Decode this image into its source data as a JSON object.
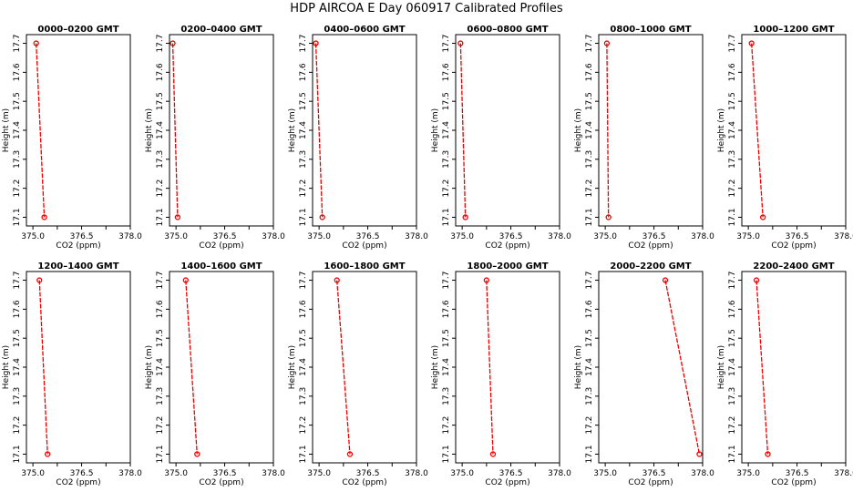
{
  "title": "HDP  AIRCOA E  Day 060917  Calibrated Profiles",
  "colors": {
    "series": "#ee0000",
    "axis": "#000000",
    "background": "#ffffff"
  },
  "chart_data": [
    {
      "type": "line",
      "title": "0000–0200 GMT",
      "xlabel": "CO2 (ppm)",
      "ylabel": "Height (m)",
      "xlim": [
        374.8,
        378.0
      ],
      "ylim": [
        17.07,
        17.73
      ],
      "xticks": [
        "375.0",
        "376.5",
        "378.0"
      ],
      "yticks": [
        "17.1",
        "17.2",
        "17.3",
        "17.4",
        "17.5",
        "17.6",
        "17.7"
      ],
      "points": [
        {
          "x": 375.1,
          "y": 17.7
        },
        {
          "x": 375.35,
          "y": 17.1
        }
      ]
    },
    {
      "type": "line",
      "title": "0200–0400 GMT",
      "xlabel": "CO2 (ppm)",
      "ylabel": "Height (m)",
      "xlim": [
        374.8,
        378.0
      ],
      "ylim": [
        17.07,
        17.73
      ],
      "xticks": [
        "375.0",
        "376.5",
        "378.0"
      ],
      "yticks": [
        "17.1",
        "17.2",
        "17.3",
        "17.4",
        "17.5",
        "17.6",
        "17.7"
      ],
      "points": [
        {
          "x": 374.9,
          "y": 17.7
        },
        {
          "x": 375.05,
          "y": 17.1
        }
      ]
    },
    {
      "type": "line",
      "title": "0400–0600 GMT",
      "xlabel": "CO2 (ppm)",
      "ylabel": "Height (m)",
      "xlim": [
        374.8,
        378.0
      ],
      "ylim": [
        17.07,
        17.73
      ],
      "xticks": [
        "375.0",
        "376.5",
        "378.0"
      ],
      "yticks": [
        "17.1",
        "17.2",
        "17.3",
        "17.4",
        "17.5",
        "17.6",
        "17.7"
      ],
      "points": [
        {
          "x": 374.9,
          "y": 17.7
        },
        {
          "x": 375.1,
          "y": 17.1
        }
      ]
    },
    {
      "type": "line",
      "title": "0600–0800 GMT",
      "xlabel": "CO2 (ppm)",
      "ylabel": "Height (m)",
      "xlim": [
        374.8,
        378.0
      ],
      "ylim": [
        17.07,
        17.73
      ],
      "xticks": [
        "375.0",
        "376.5",
        "378.0"
      ],
      "yticks": [
        "17.1",
        "17.2",
        "17.3",
        "17.4",
        "17.5",
        "17.6",
        "17.7"
      ],
      "points": [
        {
          "x": 374.95,
          "y": 17.7
        },
        {
          "x": 375.1,
          "y": 17.1
        }
      ]
    },
    {
      "type": "line",
      "title": "0800–1000 GMT",
      "xlabel": "CO2 (ppm)",
      "ylabel": "Height (m)",
      "xlim": [
        374.8,
        378.0
      ],
      "ylim": [
        17.07,
        17.73
      ],
      "xticks": [
        "375.0",
        "376.5",
        "378.0"
      ],
      "yticks": [
        "17.1",
        "17.2",
        "17.3",
        "17.4",
        "17.5",
        "17.6",
        "17.7"
      ],
      "points": [
        {
          "x": 375.05,
          "y": 17.7
        },
        {
          "x": 375.1,
          "y": 17.1
        }
      ]
    },
    {
      "type": "line",
      "title": "1000–1200 GMT",
      "xlabel": "CO2 (ppm)",
      "ylabel": "Height (m)",
      "xlim": [
        374.8,
        378.0
      ],
      "ylim": [
        17.07,
        17.73
      ],
      "xticks": [
        "375.0",
        "376.5",
        "378.0"
      ],
      "yticks": [
        "17.1",
        "17.2",
        "17.3",
        "17.4",
        "17.5",
        "17.6",
        "17.7"
      ],
      "points": [
        {
          "x": 375.1,
          "y": 17.7
        },
        {
          "x": 375.45,
          "y": 17.1
        }
      ]
    },
    {
      "type": "line",
      "title": "1200–1400 GMT",
      "xlabel": "CO2 (ppm)",
      "ylabel": "Height (m)",
      "xlim": [
        374.8,
        378.0
      ],
      "ylim": [
        17.07,
        17.73
      ],
      "xticks": [
        "375.0",
        "376.5",
        "378.0"
      ],
      "yticks": [
        "17.1",
        "17.2",
        "17.3",
        "17.4",
        "17.5",
        "17.6",
        "17.7"
      ],
      "points": [
        {
          "x": 375.2,
          "y": 17.7
        },
        {
          "x": 375.45,
          "y": 17.1
        }
      ]
    },
    {
      "type": "line",
      "title": "1400–1600 GMT",
      "xlabel": "CO2 (ppm)",
      "ylabel": "Height (m)",
      "xlim": [
        374.8,
        378.0
      ],
      "ylim": [
        17.07,
        17.73
      ],
      "xticks": [
        "375.0",
        "376.5",
        "378.0"
      ],
      "yticks": [
        "17.1",
        "17.2",
        "17.3",
        "17.4",
        "17.5",
        "17.6",
        "17.7"
      ],
      "points": [
        {
          "x": 375.3,
          "y": 17.7
        },
        {
          "x": 375.65,
          "y": 17.1
        }
      ]
    },
    {
      "type": "line",
      "title": "1600–1800 GMT",
      "xlabel": "CO2 (ppm)",
      "ylabel": "Height (m)",
      "xlim": [
        374.8,
        378.0
      ],
      "ylim": [
        17.07,
        17.73
      ],
      "xticks": [
        "375.0",
        "376.5",
        "378.0"
      ],
      "yticks": [
        "17.1",
        "17.2",
        "17.3",
        "17.4",
        "17.5",
        "17.6",
        "17.7"
      ],
      "points": [
        {
          "x": 375.55,
          "y": 17.7
        },
        {
          "x": 375.95,
          "y": 17.1
        }
      ]
    },
    {
      "type": "line",
      "title": "1800–2000 GMT",
      "xlabel": "CO2 (ppm)",
      "ylabel": "Height (m)",
      "xlim": [
        374.8,
        378.0
      ],
      "ylim": [
        17.07,
        17.73
      ],
      "xticks": [
        "375.0",
        "376.5",
        "378.0"
      ],
      "yticks": [
        "17.1",
        "17.2",
        "17.3",
        "17.4",
        "17.5",
        "17.6",
        "17.7"
      ],
      "points": [
        {
          "x": 375.75,
          "y": 17.7
        },
        {
          "x": 375.95,
          "y": 17.1
        }
      ]
    },
    {
      "type": "line",
      "title": "2000–2200 GMT",
      "xlabel": "CO2 (ppm)",
      "ylabel": "Height (m)",
      "xlim": [
        374.8,
        378.0
      ],
      "ylim": [
        17.07,
        17.73
      ],
      "xticks": [
        "375.0",
        "376.5",
        "378.0"
      ],
      "yticks": [
        "17.1",
        "17.2",
        "17.3",
        "17.4",
        "17.5",
        "17.6",
        "17.7"
      ],
      "points": [
        {
          "x": 376.85,
          "y": 17.7
        },
        {
          "x": 377.9,
          "y": 17.1
        }
      ]
    },
    {
      "type": "line",
      "title": "2200–2400 GMT",
      "xlabel": "CO2 (ppm)",
      "ylabel": "Height (m)",
      "xlim": [
        374.8,
        378.0
      ],
      "ylim": [
        17.07,
        17.73
      ],
      "xticks": [
        "375.0",
        "376.5",
        "378.0"
      ],
      "yticks": [
        "17.1",
        "17.2",
        "17.3",
        "17.4",
        "17.5",
        "17.6",
        "17.7"
      ],
      "points": [
        {
          "x": 375.25,
          "y": 17.7
        },
        {
          "x": 375.6,
          "y": 17.1
        }
      ]
    }
  ]
}
